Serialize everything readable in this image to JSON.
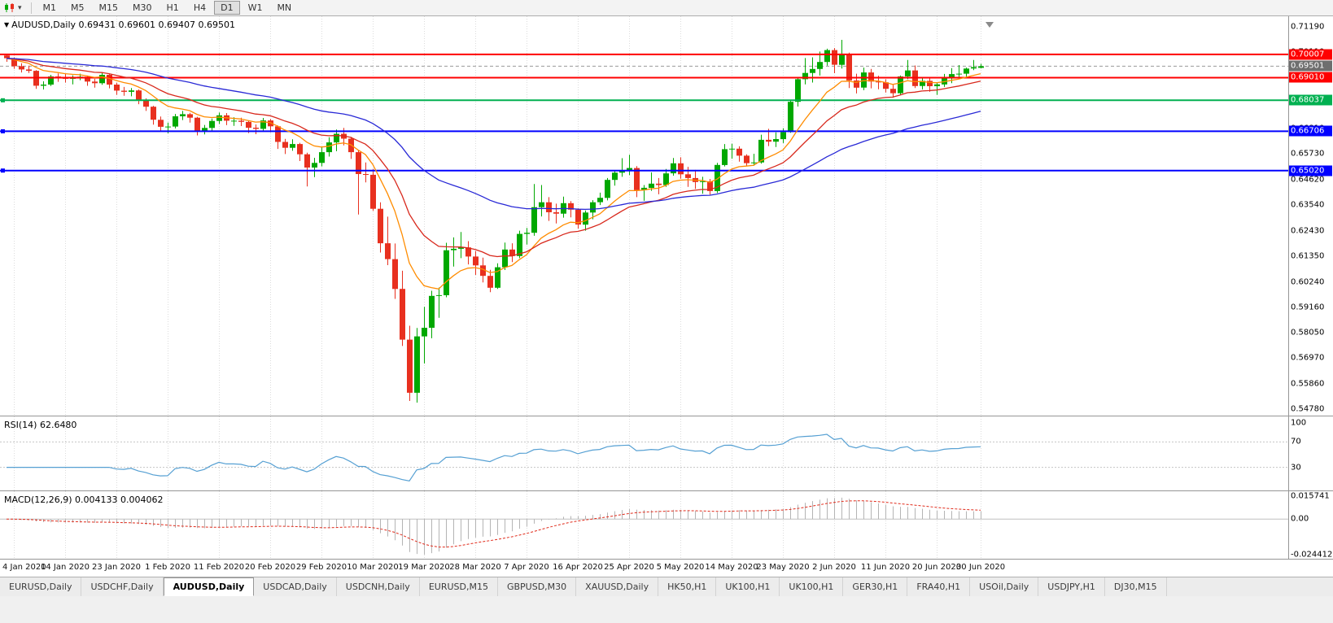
{
  "toolbar": {
    "caret_icon": "▾",
    "timeframes": [
      "M1",
      "M5",
      "M15",
      "M30",
      "H1",
      "H4",
      "D1",
      "W1",
      "MN"
    ],
    "active_timeframe": "D1"
  },
  "chart_header": {
    "arrow_icon": "▼",
    "text": "AUDUSD,Daily 0.69431 0.69601 0.69407 0.69501"
  },
  "chart_data": {
    "type": "candlestick",
    "symbol": "AUDUSD",
    "timeframe": "Daily",
    "ohlc_readout": {
      "open": "0.69431",
      "high": "0.69601",
      "low": "0.69407",
      "close": "0.69501"
    },
    "price_axis": {
      "min": 0.5478,
      "max": 0.7119,
      "ticks": [
        "0.71190",
        "0.70110",
        "0.69000",
        "0.67920",
        "0.66810",
        "0.65730",
        "0.64620",
        "0.63540",
        "0.62430",
        "0.61350",
        "0.60240",
        "0.59160",
        "0.58050",
        "0.56970",
        "0.55860",
        "0.54780"
      ]
    },
    "date_ticks": {
      "indices": [
        1,
        8,
        15,
        22,
        29,
        36,
        43,
        50,
        57,
        64,
        71,
        78,
        85,
        92,
        99,
        106,
        113,
        120,
        127,
        133
      ],
      "labels": [
        "4 Jan 2020",
        "14 Jan 2020",
        "23 Jan 2020",
        "1 Feb 2020",
        "11 Feb 2020",
        "20 Feb 2020",
        "29 Feb 2020",
        "10 Mar 2020",
        "19 Mar 2020",
        "28 Mar 2020",
        "7 Apr 2020",
        "16 Apr 2020",
        "25 Apr 2020",
        "5 May 2020",
        "14 May 2020",
        "23 May 2020",
        "2 Jun 2020",
        "11 Jun 2020",
        "20 Jun 2020",
        "30 Jun 2020"
      ]
    },
    "colors": {
      "up": "#00a800",
      "down": "#e8301f",
      "grid": "#dcdcdc"
    },
    "hlines": [
      {
        "price": 0.70007,
        "label": "0.70007",
        "color": "#ff0000",
        "anchor": false
      },
      {
        "price": 0.6901,
        "label": "0.69010",
        "color": "#ff0000",
        "anchor": false
      },
      {
        "price": 0.68037,
        "label": "0.68037",
        "color": "#00b050",
        "anchor": true
      },
      {
        "price": 0.66706,
        "label": "0.66706",
        "color": "#0000ff",
        "anchor": true
      },
      {
        "price": 0.6502,
        "label": "0.65020",
        "color": "#0000ff",
        "anchor": true
      }
    ],
    "current_price": {
      "value": 0.69501,
      "label": "0.69501",
      "color": "#6e6e6e"
    },
    "moving_averages": [
      {
        "period": 10,
        "color": "#ff8c00"
      },
      {
        "period": 20,
        "color": "#d8281c"
      },
      {
        "period": 50,
        "color": "#2929d6"
      }
    ],
    "candles": [
      [
        0.6996,
        0.7002,
        0.6969,
        0.6984
      ],
      [
        0.6984,
        0.6988,
        0.6939,
        0.695
      ],
      [
        0.695,
        0.6963,
        0.6923,
        0.6936
      ],
      [
        0.6936,
        0.6952,
        0.6921,
        0.693
      ],
      [
        0.693,
        0.6933,
        0.6853,
        0.6866
      ],
      [
        0.6866,
        0.6885,
        0.685,
        0.6871
      ],
      [
        0.6871,
        0.6913,
        0.6865,
        0.6906
      ],
      [
        0.6906,
        0.6919,
        0.6883,
        0.6903
      ],
      [
        0.6903,
        0.6917,
        0.688,
        0.6896
      ],
      [
        0.6896,
        0.6911,
        0.6872,
        0.6903
      ],
      [
        0.6903,
        0.6918,
        0.689,
        0.6905
      ],
      [
        0.6905,
        0.691,
        0.6866,
        0.6884
      ],
      [
        0.6884,
        0.6896,
        0.6858,
        0.6877
      ],
      [
        0.6877,
        0.6924,
        0.687,
        0.6913
      ],
      [
        0.6913,
        0.6916,
        0.6855,
        0.6871
      ],
      [
        0.6871,
        0.6879,
        0.6827,
        0.6845
      ],
      [
        0.6845,
        0.6861,
        0.6823,
        0.684
      ],
      [
        0.684,
        0.6856,
        0.6821,
        0.6846
      ],
      [
        0.6846,
        0.685,
        0.6787,
        0.6804
      ],
      [
        0.6804,
        0.6812,
        0.6758,
        0.6776
      ],
      [
        0.6776,
        0.678,
        0.6699,
        0.672
      ],
      [
        0.672,
        0.6734,
        0.667,
        0.669
      ],
      [
        0.669,
        0.6708,
        0.6662,
        0.6691
      ],
      [
        0.6691,
        0.6745,
        0.6683,
        0.6735
      ],
      [
        0.6735,
        0.6758,
        0.6719,
        0.6744
      ],
      [
        0.6744,
        0.675,
        0.6708,
        0.6729
      ],
      [
        0.6729,
        0.6733,
        0.6653,
        0.6672
      ],
      [
        0.6672,
        0.6698,
        0.6657,
        0.6685
      ],
      [
        0.6685,
        0.6725,
        0.6674,
        0.6715
      ],
      [
        0.6715,
        0.6751,
        0.6702,
        0.6739
      ],
      [
        0.6739,
        0.6749,
        0.6697,
        0.6716
      ],
      [
        0.6716,
        0.6731,
        0.6694,
        0.6716
      ],
      [
        0.6716,
        0.6729,
        0.6693,
        0.6711
      ],
      [
        0.6711,
        0.6717,
        0.6663,
        0.6686
      ],
      [
        0.6686,
        0.67,
        0.6658,
        0.6681
      ],
      [
        0.6681,
        0.6728,
        0.667,
        0.6717
      ],
      [
        0.6717,
        0.6723,
        0.6666,
        0.6692
      ],
      [
        0.6692,
        0.6696,
        0.6595,
        0.6625
      ],
      [
        0.6625,
        0.6638,
        0.6573,
        0.66
      ],
      [
        0.66,
        0.6636,
        0.6587,
        0.6616
      ],
      [
        0.6616,
        0.6621,
        0.6543,
        0.6572
      ],
      [
        0.6572,
        0.6579,
        0.6434,
        0.6515
      ],
      [
        0.6515,
        0.6557,
        0.6474,
        0.6535
      ],
      [
        0.6535,
        0.6605,
        0.652,
        0.6581
      ],
      [
        0.6581,
        0.6645,
        0.6562,
        0.6623
      ],
      [
        0.6623,
        0.6678,
        0.6585,
        0.666
      ],
      [
        0.666,
        0.6685,
        0.661,
        0.6639
      ],
      [
        0.6639,
        0.6647,
        0.6552,
        0.6581
      ],
      [
        0.6581,
        0.659,
        0.6313,
        0.6487
      ],
      [
        0.6487,
        0.6537,
        0.6451,
        0.6484
      ],
      [
        0.6484,
        0.6509,
        0.6329,
        0.6338
      ],
      [
        0.6338,
        0.6366,
        0.615,
        0.619
      ],
      [
        0.619,
        0.6304,
        0.6096,
        0.6122
      ],
      [
        0.6122,
        0.6189,
        0.5951,
        0.5994
      ],
      [
        0.5994,
        0.6072,
        0.5749,
        0.5776
      ],
      [
        0.5776,
        0.5836,
        0.5513,
        0.5548
      ],
      [
        0.5548,
        0.5826,
        0.5506,
        0.579
      ],
      [
        0.579,
        0.5917,
        0.5674,
        0.5827
      ],
      [
        0.5827,
        0.5986,
        0.5782,
        0.5964
      ],
      [
        0.5964,
        0.6,
        0.587,
        0.5967
      ],
      [
        0.5967,
        0.6192,
        0.5958,
        0.616
      ],
      [
        0.616,
        0.6215,
        0.609,
        0.6166
      ],
      [
        0.6166,
        0.6238,
        0.6126,
        0.6172
      ],
      [
        0.6172,
        0.6199,
        0.6099,
        0.6133
      ],
      [
        0.6133,
        0.6156,
        0.6054,
        0.6095
      ],
      [
        0.6095,
        0.6128,
        0.6022,
        0.605
      ],
      [
        0.605,
        0.6076,
        0.598,
        0.5999
      ],
      [
        0.5999,
        0.6104,
        0.5994,
        0.6087
      ],
      [
        0.6087,
        0.6193,
        0.6075,
        0.6163
      ],
      [
        0.6163,
        0.619,
        0.6109,
        0.6135
      ],
      [
        0.6135,
        0.6244,
        0.6126,
        0.623
      ],
      [
        0.623,
        0.6256,
        0.6184,
        0.6235
      ],
      [
        0.6235,
        0.6444,
        0.6222,
        0.6345
      ],
      [
        0.6345,
        0.644,
        0.6305,
        0.6366
      ],
      [
        0.6366,
        0.6388,
        0.6286,
        0.6323
      ],
      [
        0.6323,
        0.636,
        0.6275,
        0.6317
      ],
      [
        0.6317,
        0.639,
        0.63,
        0.6362
      ],
      [
        0.6362,
        0.6371,
        0.6301,
        0.6334
      ],
      [
        0.6334,
        0.634,
        0.6253,
        0.627
      ],
      [
        0.627,
        0.6331,
        0.6244,
        0.6322
      ],
      [
        0.6322,
        0.6375,
        0.6293,
        0.6366
      ],
      [
        0.6366,
        0.6407,
        0.6354,
        0.6385
      ],
      [
        0.6385,
        0.647,
        0.6374,
        0.6462
      ],
      [
        0.6462,
        0.65,
        0.6437,
        0.6493
      ],
      [
        0.6493,
        0.6555,
        0.6475,
        0.6504
      ],
      [
        0.6504,
        0.657,
        0.6483,
        0.6513
      ],
      [
        0.6513,
        0.6521,
        0.6388,
        0.6418
      ],
      [
        0.6418,
        0.644,
        0.6372,
        0.6428
      ],
      [
        0.6428,
        0.6494,
        0.6415,
        0.6446
      ],
      [
        0.6446,
        0.647,
        0.64,
        0.644
      ],
      [
        0.644,
        0.6509,
        0.6432,
        0.649
      ],
      [
        0.649,
        0.6556,
        0.648,
        0.6533
      ],
      [
        0.6533,
        0.6559,
        0.6467,
        0.6486
      ],
      [
        0.6486,
        0.6518,
        0.6432,
        0.647
      ],
      [
        0.647,
        0.6505,
        0.6423,
        0.6453
      ],
      [
        0.6453,
        0.6475,
        0.6403,
        0.6456
      ],
      [
        0.6456,
        0.6466,
        0.6399,
        0.6414
      ],
      [
        0.6414,
        0.6535,
        0.6406,
        0.6526
      ],
      [
        0.6526,
        0.6616,
        0.652,
        0.6594
      ],
      [
        0.6594,
        0.6617,
        0.6553,
        0.6596
      ],
      [
        0.6596,
        0.6606,
        0.654,
        0.6566
      ],
      [
        0.6566,
        0.6572,
        0.6522,
        0.6534
      ],
      [
        0.6534,
        0.6574,
        0.6523,
        0.6537
      ],
      [
        0.6537,
        0.6656,
        0.6532,
        0.6634
      ],
      [
        0.6634,
        0.6681,
        0.6607,
        0.6626
      ],
      [
        0.6626,
        0.6666,
        0.6603,
        0.6637
      ],
      [
        0.6637,
        0.6684,
        0.662,
        0.6667
      ],
      [
        0.6667,
        0.6805,
        0.6664,
        0.6797
      ],
      [
        0.6797,
        0.69,
        0.6777,
        0.6894
      ],
      [
        0.6894,
        0.6985,
        0.6872,
        0.6921
      ],
      [
        0.6921,
        0.6988,
        0.688,
        0.6938
      ],
      [
        0.6938,
        0.7013,
        0.691,
        0.6968
      ],
      [
        0.6968,
        0.7025,
        0.6952,
        0.7019
      ],
      [
        0.7019,
        0.7028,
        0.692,
        0.6956
      ],
      [
        0.6956,
        0.7063,
        0.694,
        0.6999
      ],
      [
        0.6999,
        0.7008,
        0.6856,
        0.6889
      ],
      [
        0.6889,
        0.6918,
        0.6833,
        0.6858
      ],
      [
        0.6858,
        0.6944,
        0.6847,
        0.6923
      ],
      [
        0.6923,
        0.6938,
        0.6855,
        0.6884
      ],
      [
        0.6884,
        0.6909,
        0.6851,
        0.6881
      ],
      [
        0.6881,
        0.6894,
        0.6837,
        0.6853
      ],
      [
        0.6853,
        0.687,
        0.6815,
        0.6834
      ],
      [
        0.6834,
        0.691,
        0.6826,
        0.6906
      ],
      [
        0.6906,
        0.6977,
        0.6894,
        0.6932
      ],
      [
        0.6932,
        0.6953,
        0.6856,
        0.6865
      ],
      [
        0.6865,
        0.6904,
        0.685,
        0.6887
      ],
      [
        0.6887,
        0.6899,
        0.684,
        0.6864
      ],
      [
        0.6864,
        0.6878,
        0.6827,
        0.6872
      ],
      [
        0.6872,
        0.6917,
        0.6861,
        0.6903
      ],
      [
        0.6903,
        0.6942,
        0.6877,
        0.6916
      ],
      [
        0.6916,
        0.6955,
        0.69,
        0.6918
      ],
      [
        0.6918,
        0.6944,
        0.6899,
        0.694
      ],
      [
        0.694,
        0.6977,
        0.6933,
        0.6946
      ],
      [
        0.69431,
        0.69601,
        0.69407,
        0.69501
      ]
    ],
    "indicators": {
      "rsi": {
        "header": "RSI(14) 62.6480",
        "period": 14,
        "value": "62.6480",
        "color": "#56a0d3",
        "scale": {
          "min": 0,
          "max": 100
        },
        "grid_levels": [
          70,
          30
        ],
        "axis_marks": [
          {
            "value": 100,
            "label": "100"
          },
          {
            "value": 70,
            "label": "70"
          },
          {
            "value": 30,
            "label": "30"
          }
        ]
      },
      "macd": {
        "header": "MACD(12,26,9) 0.004133 0.004062",
        "fast": 12,
        "slow": 26,
        "signal_period": 9,
        "values": "0.004133 0.004062",
        "histogram_color": "#b4b4b4",
        "signal_color": "#e02a1a",
        "scale": {
          "min": -0.024412,
          "max": 0.015741
        },
        "axis_marks": [
          {
            "value": 0.015741,
            "label": "0.015741"
          },
          {
            "value": 0,
            "label": "0.00"
          },
          {
            "value": -0.024412,
            "label": "-0.024412"
          }
        ]
      }
    }
  },
  "tab_bar": {
    "tabs": [
      "EURUSD,Daily",
      "USDCHF,Daily",
      "AUDUSD,Daily",
      "USDCAD,Daily",
      "USDCNH,Daily",
      "EURUSD,M15",
      "GBPUSD,M30",
      "XAUUSD,Daily",
      "HK50,H1",
      "UK100,H1",
      "UK100,H1",
      "GER30,H1",
      "FRA40,H1",
      "USOil,Daily",
      "USDJPY,H1",
      "DJ30,M15"
    ],
    "active_index": 2
  }
}
